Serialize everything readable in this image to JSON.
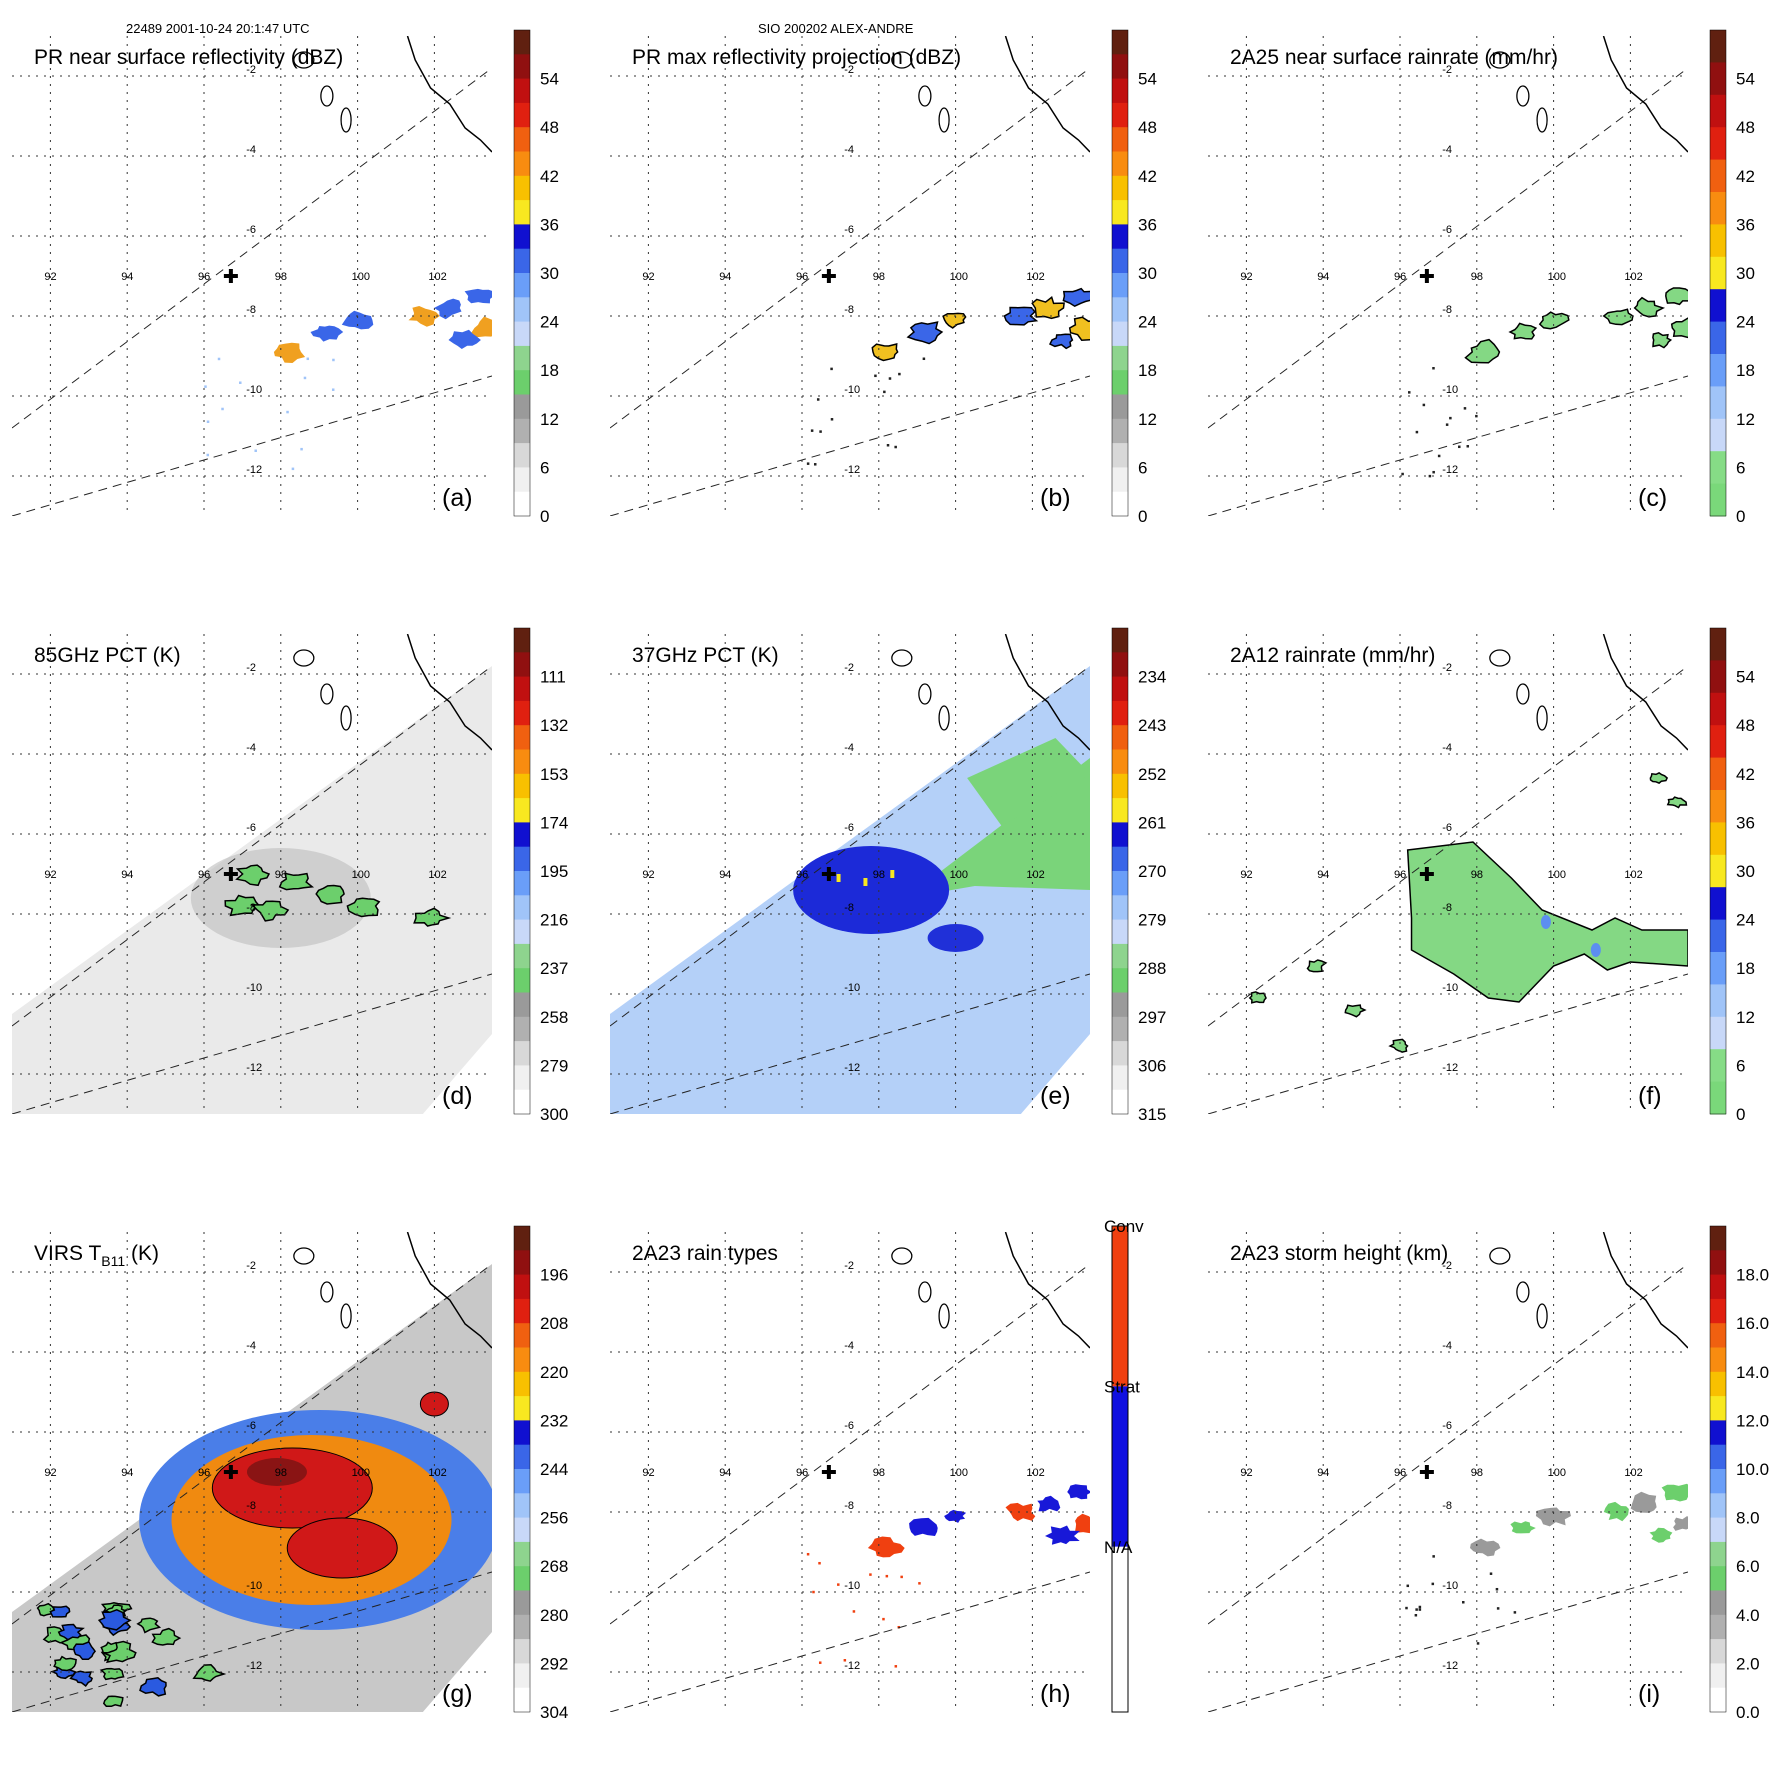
{
  "header": {
    "left": "22489 2001-10-24 20:1:47 UTC",
    "center": "SIO 200202 ALEX-ANDRE"
  },
  "map": {
    "lon_ticks": [
      "92",
      "94",
      "96",
      "98",
      "100",
      "102"
    ],
    "lat_ticks": [
      "-2",
      "-4",
      "-6",
      "-8",
      "-10",
      "-12"
    ],
    "lon_values": [
      92,
      94,
      96,
      98,
      100,
      102
    ],
    "lat_values": [
      -2,
      -4,
      -6,
      -8,
      -10,
      -12
    ],
    "extent": {
      "lon_min": 91,
      "lon_max": 103.5,
      "lat_min": -13,
      "lat_max": -1
    },
    "center_marker": {
      "lon": 96.7,
      "lat": -7.0
    }
  },
  "panels": [
    {
      "id": "a",
      "title": "PR near surface reflectivity (dBZ)",
      "letter": "(a)",
      "colorbar": "reflect",
      "ticks": [
        "54",
        "48",
        "42",
        "36",
        "30",
        "24",
        "18",
        "12",
        "6",
        "0"
      ],
      "field": "pr_swath"
    },
    {
      "id": "b",
      "title": "PR max reflectivity projection (dBZ)",
      "letter": "(b)",
      "colorbar": "reflect",
      "ticks": [
        "54",
        "48",
        "42",
        "36",
        "30",
        "24",
        "18",
        "12",
        "6",
        "0"
      ],
      "field": "pr_swath_contour"
    },
    {
      "id": "c",
      "title": "2A25 near surface rainrate (mm/hr)",
      "letter": "(c)",
      "colorbar": "rain",
      "ticks": [
        "54",
        "48",
        "42",
        "36",
        "30",
        "24",
        "18",
        "12",
        "6",
        "0"
      ],
      "field": "pr_rain"
    },
    {
      "id": "d",
      "title": "85GHz PCT (K)",
      "letter": "(d)",
      "colorbar": "pct",
      "ticks": [
        "111",
        "132",
        "153",
        "174",
        "195",
        "216",
        "237",
        "258",
        "279",
        "300"
      ],
      "field": "tmi85"
    },
    {
      "id": "e",
      "title": "37GHz PCT (K)",
      "letter": "(e)",
      "colorbar": "pct",
      "ticks": [
        "234",
        "243",
        "252",
        "261",
        "270",
        "279",
        "288",
        "297",
        "306",
        "315"
      ],
      "field": "tmi37"
    },
    {
      "id": "f",
      "title": "2A12 rainrate (mm/hr)",
      "letter": "(f)",
      "colorbar": "rain",
      "ticks": [
        "54",
        "48",
        "42",
        "36",
        "30",
        "24",
        "18",
        "12",
        "6",
        "0"
      ],
      "field": "tmi_rain"
    },
    {
      "id": "g",
      "title": "VIRS T",
      "title_sub": "B11",
      "title_suffix": " (K)",
      "letter": "(g)",
      "colorbar": "virs",
      "ticks": [
        "196",
        "208",
        "220",
        "232",
        "244",
        "256",
        "268",
        "280",
        "292",
        "304"
      ],
      "field": "virs"
    },
    {
      "id": "h",
      "title": "2A23 rain types",
      "letter": "(h)",
      "colorbar": "types",
      "ticks": [
        "Conv",
        "Strat",
        "N/A"
      ],
      "field": "types"
    },
    {
      "id": "i",
      "title": "2A23 storm height (km)",
      "letter": "(i)",
      "colorbar": "height",
      "ticks": [
        "18.0",
        "16.0",
        "14.0",
        "12.0",
        "10.0",
        "8.0",
        "6.0",
        "4.0",
        "2.0",
        "0.0"
      ],
      "field": "height"
    }
  ],
  "colors": {
    "reflect": [
      "#ffffff",
      "#f0f0f0",
      "#d8d8d8",
      "#b0b0b0",
      "#9a9a9a",
      "#6ccf6c",
      "#8ed48e",
      "#c8d8f8",
      "#a0c4f8",
      "#6a9ef8",
      "#3a66e8",
      "#1010d0",
      "#f8e820",
      "#f8c000",
      "#f88c10",
      "#f06010",
      "#e02010",
      "#c01010",
      "#901010",
      "#602010"
    ],
    "rain": [
      "#7ad87a",
      "#86dc86",
      "#c8d8f8",
      "#a0c4f8",
      "#6a9ef8",
      "#3a66e8",
      "#1010d0",
      "#f8e820",
      "#f8c000",
      "#f88c10",
      "#f06010",
      "#e02010",
      "#c01010",
      "#901010",
      "#602010"
    ],
    "pct": [
      "#ffffff",
      "#f0f0f0",
      "#d8d8d8",
      "#b0b0b0",
      "#9a9a9a",
      "#6ccf6c",
      "#8ed48e",
      "#c8d8f8",
      "#a0c4f8",
      "#6a9ef8",
      "#3a66e8",
      "#1010d0",
      "#f8e820",
      "#f8c000",
      "#f88c10",
      "#f06010",
      "#e02010",
      "#c01010",
      "#901010",
      "#602010"
    ],
    "virs": [
      "#ffffff",
      "#f0f0f0",
      "#d8d8d8",
      "#b0b0b0",
      "#9a9a9a",
      "#6ccf6c",
      "#8ed48e",
      "#c8d8f8",
      "#a0c4f8",
      "#6a9ef8",
      "#3a66e8",
      "#1010d0",
      "#f8e820",
      "#f8c000",
      "#f88c10",
      "#f06010",
      "#e02010",
      "#c01010",
      "#901010",
      "#602010"
    ],
    "height": [
      "#ffffff",
      "#f0f0f0",
      "#d8d8d8",
      "#b0b0b0",
      "#9a9a9a",
      "#6ccf6c",
      "#8ed48e",
      "#c8d8f8",
      "#a0c4f8",
      "#6a9ef8",
      "#3a66e8",
      "#1010d0",
      "#f8e820",
      "#f8c000",
      "#f88c10",
      "#f06010",
      "#e02010",
      "#c01010",
      "#901010",
      "#602010"
    ],
    "types": [
      "#ffffff",
      "#1010e0",
      "#f04010"
    ],
    "green": "#6ccf6c",
    "lightblue": "#a8c8f8",
    "blue": "#1818d8",
    "orange": "#f07010",
    "red": "#d01010",
    "gray": "#e8e8e8"
  }
}
